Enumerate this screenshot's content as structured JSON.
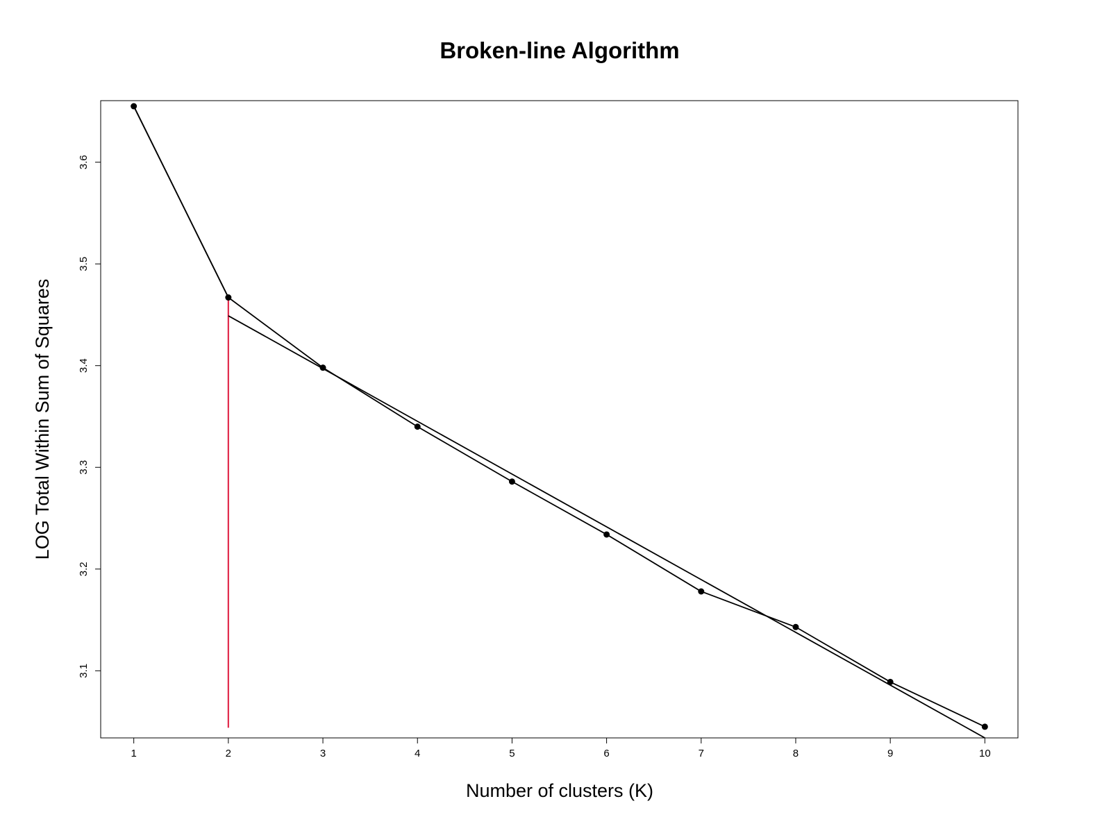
{
  "chart_data": {
    "type": "line",
    "title": "Broken-line Algorithm",
    "xlabel": "Number of clusters (K)",
    "ylabel": "LOG Total Within Sum of Squares",
    "xlim": [
      0.65,
      10.35
    ],
    "ylim": [
      3.034,
      3.6605
    ],
    "x_ticks": [
      1,
      2,
      3,
      4,
      5,
      6,
      7,
      8,
      9,
      10
    ],
    "y_ticks": [
      3.1,
      3.2,
      3.3,
      3.4,
      3.5,
      3.6
    ],
    "grid": false,
    "series": [
      {
        "x": [
          1,
          2,
          3,
          4,
          5,
          6,
          7,
          8,
          9,
          10
        ],
        "y": [
          3.655,
          3.467,
          3.398,
          3.34,
          3.286,
          3.234,
          3.178,
          3.143,
          3.089,
          3.045
        ],
        "markers": true,
        "color": "#000000"
      },
      {
        "x": [
          1,
          2
        ],
        "y": [
          3.655,
          3.467
        ],
        "markers": false,
        "color": "#000000"
      },
      {
        "x": [
          2,
          10
        ],
        "y": [
          3.449,
          3.034
        ],
        "markers": false,
        "color": "#000000"
      }
    ],
    "vline": {
      "x": 2,
      "y_from": 3.044,
      "y_to": 3.467,
      "color": "#e0294a"
    }
  }
}
